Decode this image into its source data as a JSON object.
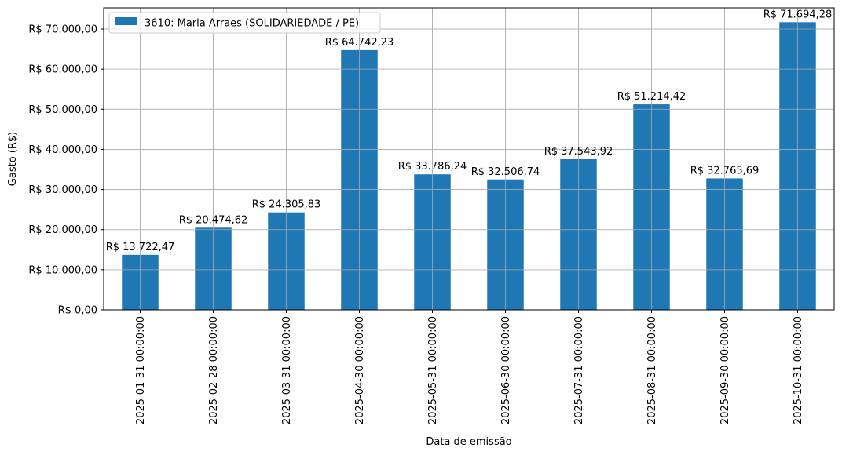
{
  "chart_data": {
    "type": "bar",
    "xlabel": "Data de emissão",
    "ylabel": "Gasto (R$)",
    "categories": [
      "2025-01-31 00:00:00",
      "2025-02-28 00:00:00",
      "2025-03-31 00:00:00",
      "2025-04-30 00:00:00",
      "2025-05-31 00:00:00",
      "2025-06-30 00:00:00",
      "2025-07-31 00:00:00",
      "2025-08-31 00:00:00",
      "2025-09-30 00:00:00",
      "2025-10-31 00:00:00"
    ],
    "series": [
      {
        "name": "3610: Maria Arraes (SOLIDARIEDADE / PE)",
        "color": "#1f77b4",
        "values": [
          13722.47,
          20474.62,
          24305.83,
          64742.23,
          33786.24,
          32506.74,
          37543.92,
          51214.42,
          32765.69,
          71694.28
        ],
        "labels": [
          "R$ 13.722,47",
          "R$ 20.474,62",
          "R$ 24.305,83",
          "R$ 64.742,23",
          "R$ 33.786,24",
          "R$ 32.506,74",
          "R$ 37.543,92",
          "R$ 51.214,42",
          "R$ 32.765,69",
          "R$ 71.694,28"
        ]
      }
    ],
    "yticks": [
      0,
      10000,
      20000,
      30000,
      40000,
      50000,
      60000,
      70000
    ],
    "ytick_labels": [
      "R$ 0,00",
      "R$ 10.000,00",
      "R$ 20.000,00",
      "R$ 30.000,00",
      "R$ 40.000,00",
      "R$ 50.000,00",
      "R$ 60.000,00",
      "R$ 70.000,00"
    ],
    "ylim": [
      0,
      75279
    ],
    "grid": true,
    "legend_position": "top-left"
  }
}
